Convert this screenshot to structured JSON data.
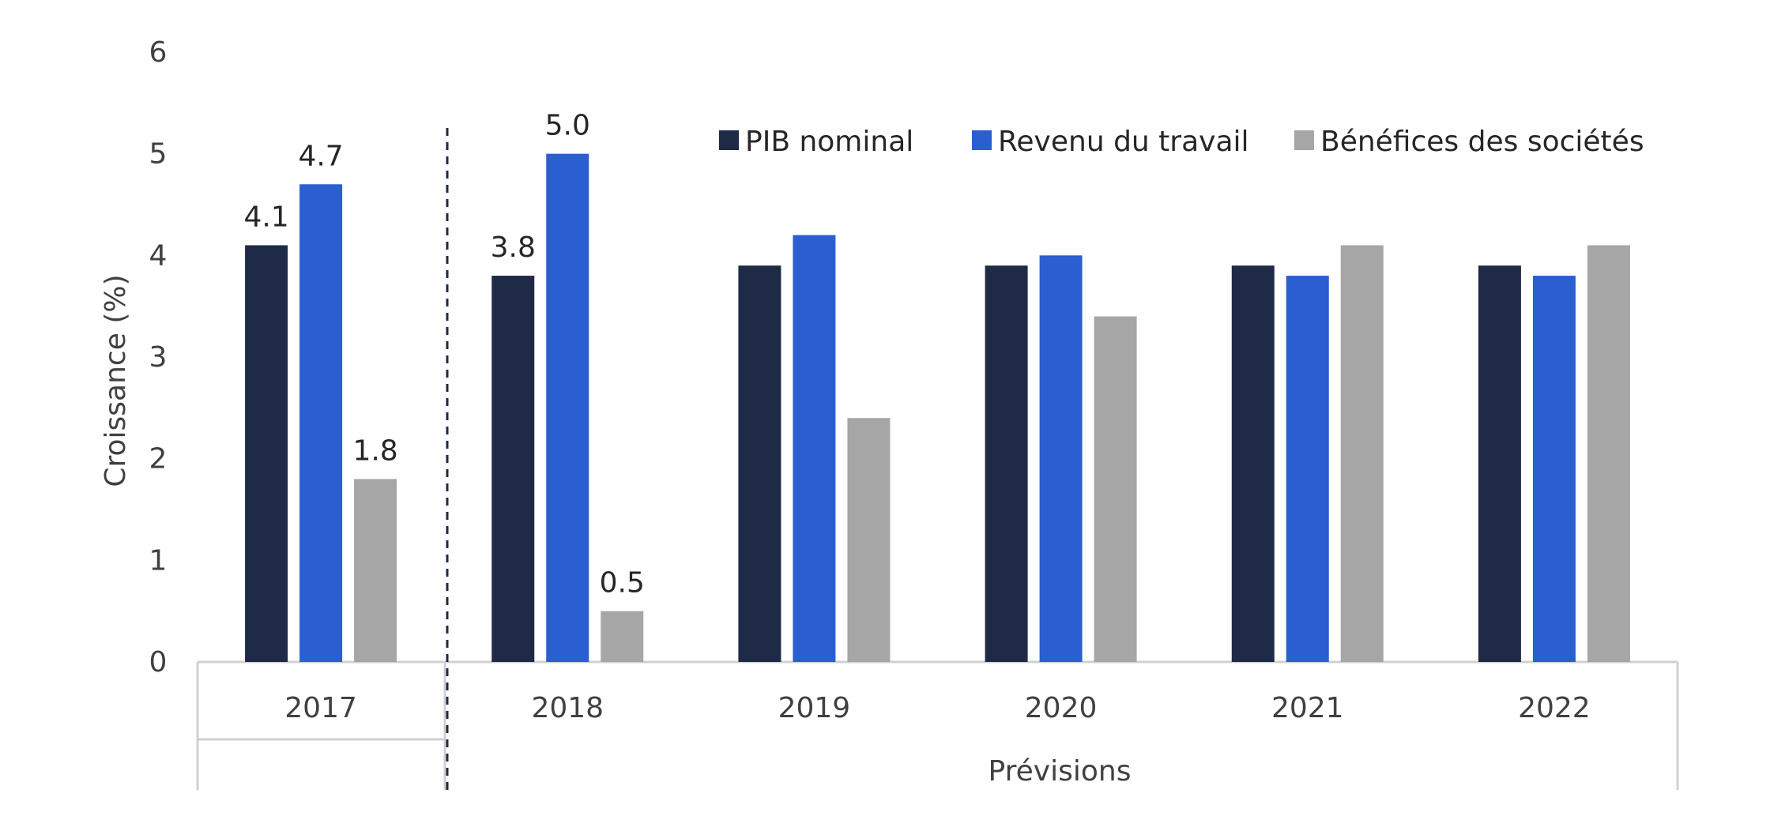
{
  "chart_data": {
    "type": "bar",
    "title": "",
    "ylabel": "Croissance (%)",
    "xlabel": "",
    "ylim": [
      0,
      6
    ],
    "yticks": [
      0,
      1,
      2,
      3,
      4,
      5,
      6
    ],
    "grid": false,
    "legend_position": "top-right",
    "categories": [
      "2017",
      "2018",
      "2019",
      "2020",
      "2021",
      "2022"
    ],
    "category_group_label": "Prévisions",
    "series": [
      {
        "name": "PIB nominal",
        "color": "#1f2a47",
        "values": [
          4.1,
          3.8,
          3.9,
          3.9,
          3.9,
          3.9
        ],
        "labels": [
          "4.1",
          "3.8",
          "",
          "",
          "",
          ""
        ]
      },
      {
        "name": "Revenu du travail",
        "color": "#2b5fd1",
        "values": [
          4.7,
          5.0,
          4.2,
          4.0,
          3.8,
          3.8
        ],
        "labels": [
          "4.7",
          "5.0",
          "",
          "",
          "",
          ""
        ]
      },
      {
        "name": "Bénéfices des sociétés",
        "color": "#a6a6a6",
        "values": [
          1.8,
          0.5,
          2.4,
          3.4,
          4.1,
          4.1
        ],
        "labels": [
          "1.8",
          "0.5",
          "",
          "",
          "",
          ""
        ]
      }
    ]
  }
}
